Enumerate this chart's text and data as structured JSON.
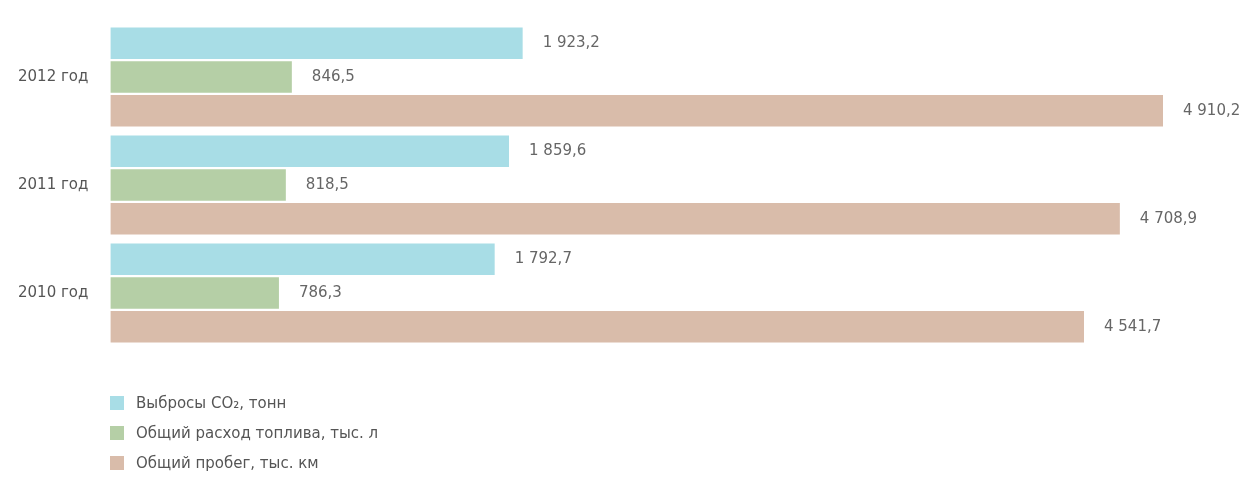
{
  "chart_data": {
    "type": "bar",
    "orientation": "horizontal",
    "categories": [
      "2012 год",
      "2011 год",
      "2010 год"
    ],
    "series": [
      {
        "name": "Выбросы CO₂, тонн",
        "color": "#a8dde6",
        "values": [
          1923.2,
          1859.6,
          1792.7
        ],
        "value_labels": [
          "1 923,2",
          "1 859,6",
          "1 792,7"
        ]
      },
      {
        "name": "Общий расход топлива, тыс. л",
        "color": "#b5cfa6",
        "values": [
          846.5,
          818.5,
          786.3
        ],
        "value_labels": [
          "846,5",
          "818,5",
          "786,3"
        ]
      },
      {
        "name": "Общий пробег, тыс. км",
        "color": "#d9bcaa",
        "values": [
          4910.2,
          4708.9,
          4541.7
        ],
        "value_labels": [
          "4 910,2",
          "4 708,9",
          "4 541,7"
        ]
      }
    ],
    "legend": "bottom left"
  }
}
